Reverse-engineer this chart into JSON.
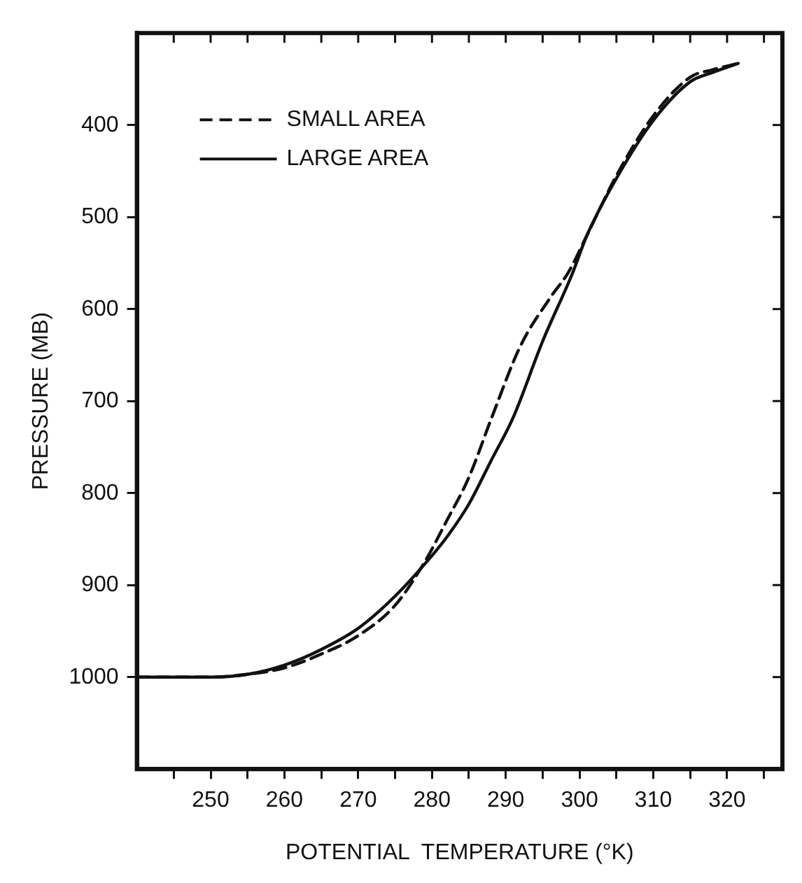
{
  "chart_data": {
    "type": "line",
    "xlabel": "POTENTIAL  TEMPERATURE (°K)",
    "ylabel": "PRESSURE (MB)",
    "xlim": [
      240,
      327.5
    ],
    "ylim": [
      1100,
      300
    ],
    "xticks": [
      {
        "value": 245,
        "label": null
      },
      250,
      {
        "value": 255,
        "label": null
      },
      260,
      {
        "value": 265,
        "label": null
      },
      270,
      {
        "value": 275,
        "label": null
      },
      280,
      {
        "value": 285,
        "label": null
      },
      290,
      {
        "value": 295,
        "label": null
      },
      300,
      {
        "value": 305,
        "label": null
      },
      310,
      {
        "value": 315,
        "label": null
      },
      320,
      {
        "value": 325,
        "label": null
      }
    ],
    "yticks": [
      400,
      500,
      600,
      700,
      800,
      900,
      1000
    ],
    "grid": false,
    "legend": "top left",
    "marker": "none",
    "series": [
      {
        "name": "SMALL AREA",
        "color": "#111111",
        "line_style": "dashed",
        "x": [
          240,
          250,
          255,
          260,
          265,
          270,
          275,
          279,
          282,
          285,
          288,
          292,
          296,
          298.5,
          301,
          305,
          310,
          315,
          318,
          321.5
        ],
        "values": [
          1000,
          1000,
          997,
          990,
          975,
          955,
          922,
          875,
          830,
          783,
          720,
          640,
          588,
          560,
          520,
          455,
          390,
          348,
          340,
          333
        ]
      },
      {
        "name": "LARGE AREA",
        "color": "#111111",
        "line_style": "solid",
        "x": [
          240,
          250,
          255,
          260,
          265,
          270,
          275,
          280,
          282,
          285,
          288,
          291,
          295,
          299,
          301,
          305,
          310,
          315,
          318,
          321.5
        ],
        "values": [
          1000,
          1000,
          997,
          987,
          970,
          947,
          912,
          868,
          848,
          812,
          765,
          718,
          635,
          562,
          520,
          458,
          395,
          353,
          343,
          333
        ]
      }
    ]
  }
}
